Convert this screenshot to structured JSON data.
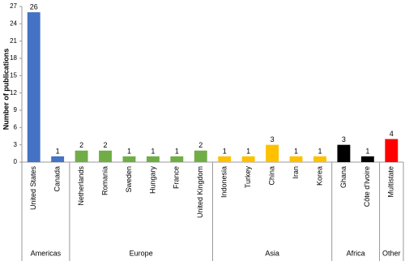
{
  "chart_data": {
    "type": "bar",
    "y_label": "Number of publications",
    "ylim": [
      0,
      27
    ],
    "yticks": [
      0,
      3,
      6,
      9,
      12,
      15,
      18,
      21,
      24,
      27
    ],
    "groups": [
      {
        "name": "Americas",
        "color": "#4472c4",
        "categories": [
          "United States",
          "Canada"
        ],
        "values": [
          26,
          1
        ]
      },
      {
        "name": "Europe",
        "color": "#70ad47",
        "categories": [
          "Netherlands",
          "Romania",
          "Sweden",
          "Hungary",
          "France",
          "United Kingdom"
        ],
        "values": [
          2,
          2,
          1,
          1,
          1,
          2
        ]
      },
      {
        "name": "Asia",
        "color": "#ffc000",
        "categories": [
          "Indonesia",
          "Turkey",
          "China",
          "Iran",
          "Korea"
        ],
        "values": [
          1,
          1,
          3,
          1,
          1
        ]
      },
      {
        "name": "Africa",
        "color": "#000000",
        "categories": [
          "Ghana",
          "Côte d'Ivoire"
        ],
        "values": [
          3,
          1
        ]
      },
      {
        "name": "Other",
        "color": "#ff0000",
        "categories": [
          "Multistate"
        ],
        "values": [
          4
        ]
      }
    ]
  }
}
